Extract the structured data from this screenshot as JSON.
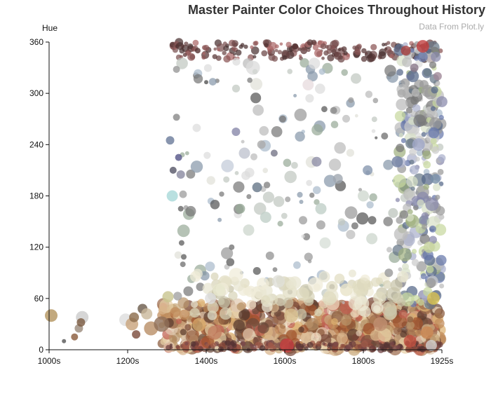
{
  "chart_data": {
    "type": "scatter",
    "title": "Master Painter Color Choices Throughout History",
    "subtitle": "Data From Plot.ly",
    "ylabel": "Hue",
    "xlabel": "",
    "x_ticks": [
      "1000s",
      "1200s",
      "1400s",
      "1600s",
      "1800s",
      "1925s"
    ],
    "y_ticks": [
      0,
      60,
      120,
      180,
      240,
      300,
      360
    ],
    "ylim": [
      0,
      360
    ],
    "xlim": [
      1000,
      1925
    ],
    "grid": false,
    "legend": "none",
    "series": [
      {
        "points": [
          [
            1005,
            40,
            9,
            "#b3935e"
          ],
          [
            1035,
            10,
            3,
            "#555555"
          ],
          [
            1060,
            15,
            5,
            "#8a5a3a"
          ],
          [
            1070,
            25,
            6,
            "#9a8a7a"
          ],
          [
            1078,
            38,
            9,
            "#cccccc"
          ],
          [
            1075,
            32,
            6,
            "#7a5a40"
          ],
          [
            1180,
            35,
            9,
            "#dddddd"
          ],
          [
            1195,
            30,
            9,
            "#c8a37a"
          ],
          [
            1200,
            38,
            7,
            "#8b6b4b"
          ],
          [
            1205,
            18,
            6,
            "#7a4a3a"
          ],
          [
            1220,
            48,
            7,
            "#6a5a4a"
          ],
          [
            1230,
            42,
            8,
            "#c9b89a"
          ],
          [
            1240,
            25,
            10,
            "#b98e66"
          ],
          [
            1265,
            30,
            11,
            "#8e6e56"
          ],
          [
            1280,
            62,
            8,
            "#c8c48e"
          ],
          [
            1285,
            245,
            6,
            "#6a7a9a"
          ],
          [
            1290,
            180,
            8,
            "#a8d8d8"
          ],
          [
            1292,
            210,
            5,
            "#555566"
          ],
          [
            1300,
            272,
            5,
            "#888888"
          ],
          [
            1300,
            328,
            5,
            "#999999"
          ],
          [
            1305,
            225,
            5,
            "#555588"
          ],
          [
            1310,
            205,
            6,
            "#8a8aa0"
          ],
          [
            1310,
            165,
            4,
            "#666666"
          ],
          [
            1312,
            125,
            4,
            "#666666"
          ],
          [
            1315,
            100,
            4,
            "#777777"
          ],
          [
            1302,
            355,
            3,
            "#553333"
          ],
          [
            1320,
            345,
            3,
            "#664444"
          ],
          [
            1350,
            350,
            4,
            "#553333"
          ],
          [
            1370,
            313,
            3,
            "#555555"
          ],
          [
            1380,
            60,
            8,
            "#dddddd"
          ],
          [
            1390,
            20,
            10,
            "#c08060"
          ],
          [
            1400,
            70,
            9,
            "#e8e8d0"
          ],
          [
            1420,
            215,
            9,
            "#c8d0dc"
          ],
          [
            1430,
            120,
            4,
            "#777777"
          ],
          [
            1440,
            255,
            6,
            "#8888aa"
          ],
          [
            1450,
            165,
            7,
            "#99aa99"
          ],
          [
            1460,
            230,
            8,
            "#c0c4d0"
          ],
          [
            1470,
            140,
            8,
            "#cfd8d0"
          ],
          [
            1480,
            330,
            10,
            "#dddddd"
          ],
          [
            1490,
            190,
            7,
            "#667788"
          ],
          [
            1500,
            240,
            6,
            "#aaaaaa"
          ],
          [
            1510,
            155,
            8,
            "#c0d0c8"
          ],
          [
            1520,
            110,
            6,
            "#999999"
          ],
          [
            1530,
            230,
            5,
            "#777788"
          ],
          [
            1540,
            80,
            9,
            "#e0e0d8"
          ],
          [
            1550,
            270,
            5,
            "#777777"
          ],
          [
            1560,
            5,
            10,
            "#c84040"
          ],
          [
            1570,
            40,
            10,
            "#d8c090"
          ],
          [
            1580,
            355,
            4,
            "#553333"
          ],
          [
            1600,
            350,
            5,
            "#664444"
          ],
          [
            1610,
            310,
            8,
            "#e8dde0"
          ],
          [
            1620,
            30,
            9,
            "#b08860"
          ],
          [
            1630,
            220,
            7,
            "#9090a8"
          ],
          [
            1640,
            165,
            8,
            "#c0d0c8"
          ],
          [
            1650,
            125,
            8,
            "#d8e0d8"
          ],
          [
            1660,
            60,
            10,
            "#e0dcc0"
          ],
          [
            1670,
            280,
            5,
            "#888888"
          ],
          [
            1680,
            200,
            7,
            "#a0a8b0"
          ],
          [
            1700,
            70,
            9,
            "#e8e4c8"
          ],
          [
            1720,
            145,
            5,
            "#777777"
          ],
          [
            1740,
            180,
            8,
            "#d0d8d0"
          ],
          [
            1750,
            210,
            7,
            "#8898b0"
          ],
          [
            1760,
            130,
            8,
            "#d0d8d0"
          ],
          [
            1780,
            30,
            10,
            "#c09070"
          ],
          [
            1790,
            250,
            5,
            "#777777"
          ],
          [
            1800,
            90,
            6,
            "#999999"
          ],
          [
            1810,
            160,
            7,
            "#c0c8c0"
          ],
          [
            1820,
            220,
            8,
            "#7080a0"
          ],
          [
            1830,
            300,
            6,
            "#aaaaaa"
          ],
          [
            1840,
            350,
            7,
            "#a84040"
          ],
          [
            1850,
            10,
            9,
            "#c05040"
          ],
          [
            1860,
            330,
            6,
            "#887788"
          ],
          [
            1870,
            240,
            9,
            "#a0a8c8"
          ],
          [
            1880,
            355,
            9,
            "#c04040"
          ],
          [
            1890,
            20,
            9,
            "#cc8855"
          ],
          [
            1895,
            120,
            8,
            "#c8d4a0"
          ],
          [
            1900,
            5,
            8,
            "#d0d0d0"
          ],
          [
            1905,
            60,
            9,
            "#d8c050"
          ],
          [
            1910,
            200,
            7,
            "#7890a8"
          ],
          [
            1915,
            320,
            6,
            "#a08898"
          ]
        ]
      }
    ],
    "dense_bands": [
      {
        "x": [
          1265,
          1925
        ],
        "y": [
          0,
          55
        ],
        "count": 760,
        "r": [
          4,
          10
        ],
        "colors": [
          "#8b5a3c",
          "#a0522d",
          "#c08a5a",
          "#d8b48a",
          "#e6cfa5",
          "#7a4a3a",
          "#b8946a",
          "#c9a97c",
          "#5a3a2e",
          "#e0c9b0",
          "#9c6b4c",
          "#dcb070",
          "#c06050",
          "#6b4a3a",
          "#eedcc0"
        ]
      },
      {
        "x": [
          1280,
          1925
        ],
        "y": [
          0,
          8
        ],
        "count": 180,
        "r": [
          2,
          5
        ],
        "colors": [
          "#6a3a3a",
          "#8a4a3a",
          "#553333",
          "#a05a4a",
          "#7a4a4a"
        ]
      },
      {
        "x": [
          1290,
          1925
        ],
        "y": [
          340,
          360
        ],
        "count": 190,
        "r": [
          2,
          6
        ],
        "colors": [
          "#553333",
          "#6a4444",
          "#7a5050",
          "#4a3030",
          "#8a5555",
          "#aa6666"
        ]
      },
      {
        "x": [
          1295,
          1925
        ],
        "y": [
          55,
          340
        ],
        "count": 190,
        "r": [
          2,
          9
        ],
        "colors": [
          "#555555",
          "#777777",
          "#999999",
          "#bbbbbb",
          "#dddddd",
          "#8899aa",
          "#aabbcc",
          "#c0c8c0",
          "#99aa99",
          "#e0e0d8"
        ]
      },
      {
        "x": [
          1820,
          1925
        ],
        "y": [
          50,
          360
        ],
        "count": 240,
        "r": [
          3,
          10
        ],
        "colors": [
          "#777777",
          "#999999",
          "#bbbbbb",
          "#8888aa",
          "#6677aa",
          "#aab0cc",
          "#c8d8a0",
          "#a0b080",
          "#d8e0c8",
          "#cccccc",
          "#667788",
          "#556688"
        ]
      },
      {
        "x": [
          1340,
          1860
        ],
        "y": [
          40,
          90
        ],
        "count": 90,
        "r": [
          5,
          11
        ],
        "colors": [
          "#e8e4d0",
          "#d8d4b8",
          "#f0ecd8",
          "#c8c4a8",
          "#e0dcc0"
        ]
      }
    ]
  }
}
